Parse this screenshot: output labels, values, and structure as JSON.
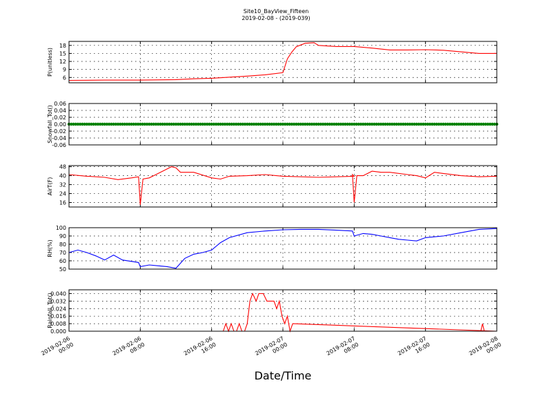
{
  "figure": {
    "title": "Site10_BayView_Fifteen",
    "subtitle": "2019-02-08 - (2019-039)",
    "xlabel": "Date/Time"
  },
  "chart_data": [
    {
      "type": "line",
      "ylabel": "P(unitless)",
      "ylim": [
        4,
        19.5
      ],
      "yticks": [
        6,
        9,
        12,
        15,
        18
      ],
      "color": "#ff0000",
      "x_hours": [
        0,
        4,
        8,
        12,
        14,
        16,
        20,
        22,
        24,
        24.5,
        25,
        25.5,
        26.5,
        27.5,
        28,
        30,
        32,
        34,
        36,
        38,
        40,
        42,
        46,
        48
      ],
      "y": [
        4.9,
        5.0,
        5.0,
        5.2,
        5.5,
        5.7,
        6.5,
        7.0,
        7.8,
        13.0,
        15.5,
        17.5,
        18.8,
        19.0,
        18.0,
        17.6,
        17.6,
        17.0,
        16.3,
        16.3,
        16.4,
        16.2,
        15.0,
        15.0
      ]
    },
    {
      "type": "scatter",
      "ylabel": "Snowfall_Tot()",
      "ylim": [
        -0.06,
        0.06
      ],
      "yticks": [
        -0.06,
        -0.04,
        -0.02,
        0.0,
        0.02,
        0.04,
        0.06
      ],
      "color": "#008000",
      "constant_value": 0.0
    },
    {
      "type": "line",
      "ylabel": "AirT(F)",
      "ylim": [
        12,
        49
      ],
      "yticks": [
        16,
        24,
        32,
        40,
        48
      ],
      "color": "#ff0000",
      "x_hours": [
        0,
        2,
        4,
        5.5,
        7,
        7.8,
        8,
        8.3,
        9,
        10,
        11,
        11.5,
        12,
        12.5,
        14,
        16,
        17,
        18,
        20,
        22,
        24,
        28,
        32,
        31.8,
        32,
        32.3,
        33,
        34,
        35,
        36,
        38,
        39,
        40,
        41,
        42,
        44,
        46,
        48
      ],
      "y": [
        41,
        39.5,
        38.5,
        36.5,
        38,
        39,
        14,
        37,
        38,
        42,
        46,
        48,
        47,
        43,
        43,
        38,
        37,
        39.5,
        40,
        41,
        39.5,
        38.5,
        39.5,
        41,
        16,
        40,
        40,
        44,
        43,
        43,
        41,
        40,
        38,
        43,
        42,
        40,
        39,
        39.5
      ]
    },
    {
      "type": "line",
      "ylabel": "RH(%)",
      "ylim": [
        50,
        100
      ],
      "yticks": [
        50,
        60,
        70,
        80,
        90,
        100
      ],
      "color": "#0000ff",
      "x_hours": [
        0,
        1,
        2,
        3,
        4,
        5,
        6,
        7.8,
        8,
        9,
        10,
        11,
        12,
        13,
        14,
        15,
        16,
        17,
        18,
        20,
        22,
        24,
        26,
        28,
        30,
        31.8,
        32,
        33,
        34,
        35,
        36,
        37,
        38,
        39,
        40,
        41,
        42,
        44,
        46,
        48
      ],
      "y": [
        70,
        73,
        70,
        66,
        61,
        67,
        61,
        58,
        53,
        55,
        54,
        53,
        51,
        63,
        68,
        70,
        73,
        82,
        88,
        94,
        96,
        97.5,
        98,
        98,
        97,
        96,
        90,
        93,
        92,
        90,
        88,
        86,
        85,
        84,
        88,
        89,
        90,
        94,
        98,
        99
      ]
    },
    {
      "type": "line",
      "ylabel": "Rainfall_Tot()",
      "ylim": [
        0,
        0.044
      ],
      "yticks": [
        0.0,
        0.008,
        0.016,
        0.024,
        0.032,
        0.04
      ],
      "color": "#ff0000",
      "x_hours": [
        0,
        17.3,
        17.6,
        17.9,
        18.2,
        18.5,
        18.8,
        19.1,
        19.4,
        19.7,
        20.0,
        20.3,
        20.6,
        21.0,
        21.3,
        21.8,
        22.2,
        22.5,
        22.8,
        23.0,
        23.3,
        23.6,
        23.9,
        24.2,
        24.5,
        24.8,
        25.1,
        48
      ],
      "y": [
        0,
        0,
        0.008,
        0,
        0.008,
        0,
        0,
        0.008,
        0,
        0,
        0.008,
        0.032,
        0.04,
        0.032,
        0.04,
        0.04,
        0.032,
        0.032,
        0.032,
        0.032,
        0.024,
        0.032,
        0.016,
        0.008,
        0.016,
        0,
        0.008,
        0
      ],
      "extra_x_hours": [
        46.2,
        46.4,
        46.6
      ],
      "extra_y": [
        0,
        0.008,
        0
      ]
    }
  ],
  "x_axis": {
    "range_hours": [
      0,
      48
    ],
    "ticks": [
      {
        "label": "2019-02-06\n00:00",
        "hours": 0
      },
      {
        "label": "2019-02-06\n08:00",
        "hours": 8
      },
      {
        "label": "2019-02-06\n16:00",
        "hours": 16
      },
      {
        "label": "2019-02-07\n00:00",
        "hours": 24
      },
      {
        "label": "2019-02-07\n08:00",
        "hours": 32
      },
      {
        "label": "2019-02-07\n16:00",
        "hours": 40
      },
      {
        "label": "2019-02-08\n00:00",
        "hours": 48
      }
    ]
  }
}
